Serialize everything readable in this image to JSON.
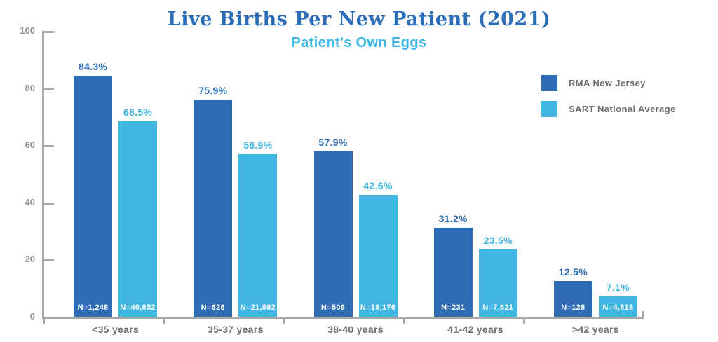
{
  "title": "Live Births Per New Patient (2021)",
  "subtitle": "Patient's Own Eggs",
  "colors": {
    "rma_blue": "#2e6db4",
    "sart_blue": "#41b6e2",
    "title_blue": "#2b6db8",
    "subtitle_blue": "#3cb6e6",
    "axis_gray": "#a6a8ab",
    "tick_label_gray": "#939598",
    "text_gray": "#6d6e71"
  },
  "legend": {
    "items": [
      {
        "label": "RMA New Jersey",
        "color": "#2e6db4"
      },
      {
        "label": "SART National Average",
        "color": "#41b6e2"
      }
    ]
  },
  "chart_data": {
    "type": "bar",
    "title": "Live Births Per New Patient (2021)",
    "subtitle": "Patient's Own Eggs",
    "categories": [
      "<35 years",
      "35-37 years",
      "38-40 years",
      "41-42 years",
      ">42 years"
    ],
    "series": [
      {
        "name": "RMA New Jersey",
        "color": "#2e6db4",
        "values": [
          84.3,
          75.9,
          57.9,
          31.2,
          12.5
        ],
        "value_labels": [
          "84.3%",
          "75.9%",
          "57.9%",
          "31.2%",
          "12.5%"
        ],
        "n_labels": [
          "N=1,248",
          "N=626",
          "N=506",
          "N=231",
          "N=128"
        ]
      },
      {
        "name": "SART National Average",
        "color": "#41b6e2",
        "values": [
          68.5,
          56.9,
          42.6,
          23.5,
          7.1
        ],
        "value_labels": [
          "68.5%",
          "56.9%",
          "42.6%",
          "23.5%",
          "7.1%"
        ],
        "n_labels": [
          "N=40,852",
          "N=21,892",
          "N=18,176",
          "N=7,621",
          "N=4,818"
        ]
      }
    ],
    "ylim": [
      0,
      100
    ],
    "yticks": [
      0,
      20,
      40,
      60,
      80,
      100
    ],
    "grid": false,
    "legend_position": "top-right"
  }
}
